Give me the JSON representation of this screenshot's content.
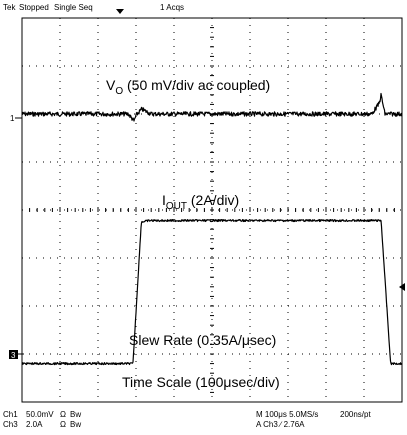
{
  "header": {
    "brand": "Tek",
    "status": "Stopped",
    "mode": "Single Seq",
    "acquisitions": "1 Acqs"
  },
  "annotations": {
    "vo": {
      "main": "V",
      "sub": "O",
      "rest": " (50 mV/div ac coupled)"
    },
    "iout": {
      "main": "I",
      "sub": "OUT",
      "rest": " (2A/div)"
    },
    "slew": "Slew Rate (0.35A/μsec)",
    "timescale": "Time Scale (100μsec/div)"
  },
  "markers": {
    "ch1": "1",
    "ch3": "3"
  },
  "footer": {
    "ch1_label": "Ch1",
    "ch1_scale": "50.0mV",
    "ch1_coupling": "Ω",
    "ch1_bw": "Bw",
    "ch3_label": "Ch3",
    "ch3_scale": "2.0A",
    "ch3_coupling": "Ω",
    "ch3_bw": "Bw",
    "timebase": "M 100μs 5.0MS/s",
    "resolution": "200ns/pt",
    "trigger": "A Ch3 ∕ 2.76A"
  },
  "chart_data": {
    "type": "line",
    "title": "",
    "xlabel": "Time Scale (100μsec/div)",
    "xlim": [
      0,
      10
    ],
    "ylim": [
      0,
      8
    ],
    "grid": true,
    "series": [
      {
        "name": "VO (50 mV/div ac coupled)",
        "points": [
          [
            0.0,
            6.0
          ],
          [
            2.8,
            6.0
          ],
          [
            2.95,
            5.85
          ],
          [
            3.0,
            5.97
          ],
          [
            3.15,
            6.1
          ],
          [
            3.4,
            6.0
          ],
          [
            9.2,
            6.0
          ],
          [
            9.4,
            6.22
          ],
          [
            9.45,
            6.4
          ],
          [
            9.55,
            6.0
          ],
          [
            10.0,
            6.0
          ]
        ]
      },
      {
        "name": "IOUT (2A/div)",
        "points": [
          [
            0.0,
            0.8
          ],
          [
            2.92,
            0.8
          ],
          [
            3.14,
            3.75
          ],
          [
            3.35,
            3.78
          ],
          [
            9.45,
            3.78
          ],
          [
            9.7,
            0.8
          ],
          [
            10.0,
            0.8
          ]
        ]
      }
    ]
  }
}
